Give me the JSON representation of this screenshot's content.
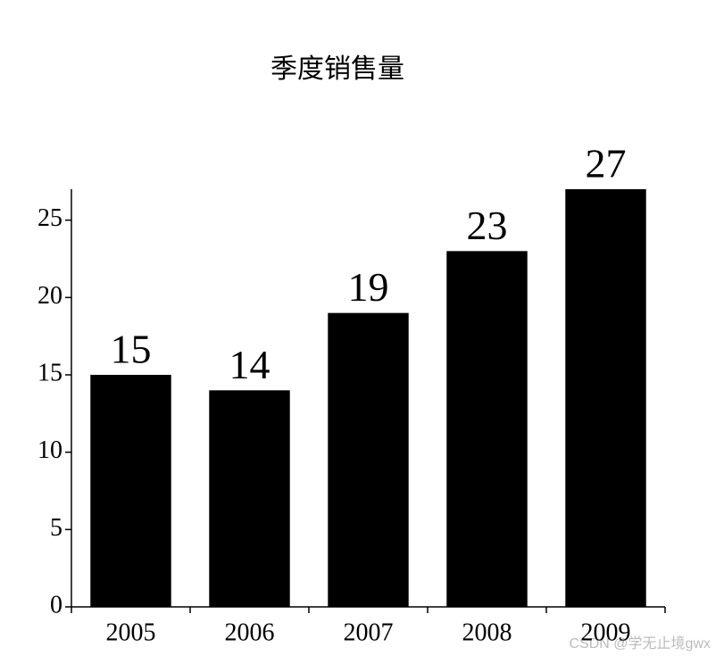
{
  "chart_data": {
    "type": "bar",
    "title": "季度销售量",
    "categories": [
      "2005",
      "2006",
      "2007",
      "2008",
      "2009"
    ],
    "values": [
      15,
      14,
      19,
      23,
      27
    ],
    "color": "#000000",
    "ylim": [
      0,
      27
    ],
    "yticks": [
      0,
      5,
      10,
      15,
      20,
      25
    ],
    "grid": false,
    "watermark": "CSDN @学无止境gwx"
  }
}
